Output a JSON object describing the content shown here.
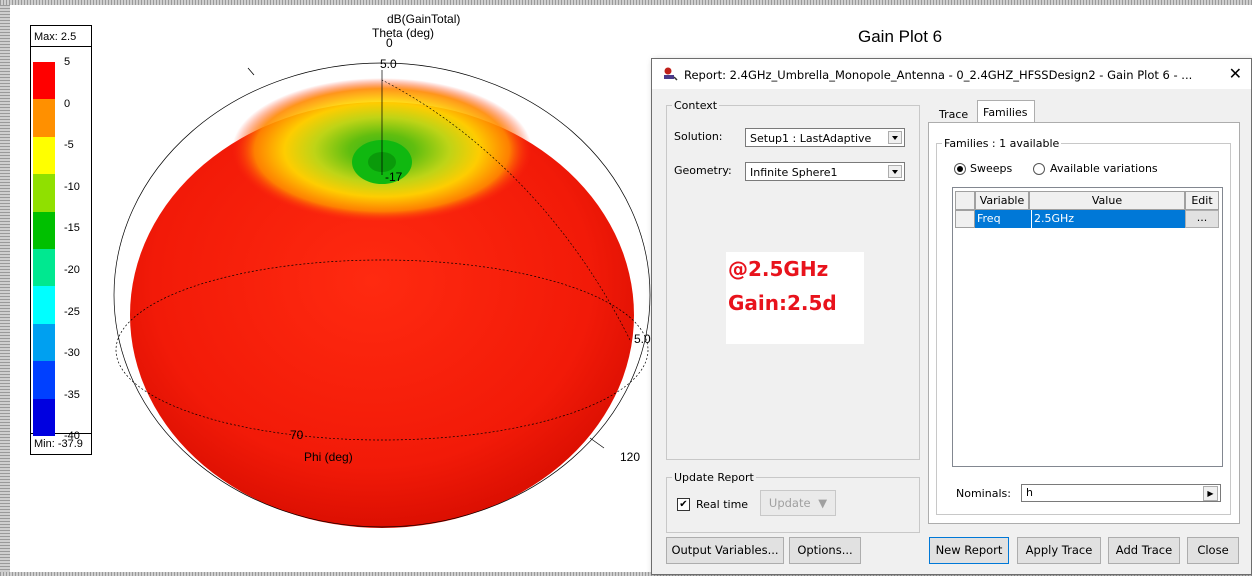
{
  "plot": {
    "title": "Gain Plot 6",
    "quantity_label": "dB(GainTotal)",
    "theta_label": "Theta (deg)",
    "theta_zero": "0",
    "phi_label": "Phi (deg)",
    "ring_labels": [
      "5.0",
      "-17",
      "5.0",
      "70",
      "120"
    ]
  },
  "legend": {
    "max_label": "Max: 2.5",
    "min_label": "Min: -37.9",
    "ticks": [
      "5",
      "0",
      "-5",
      "-10",
      "-15",
      "-20",
      "-25",
      "-30",
      "-35",
      "-40"
    ],
    "colors": [
      "#ff0000",
      "#ff9000",
      "#ffff00",
      "#90e000",
      "#00c000",
      "#00e890",
      "#00ffff",
      "#00a0f0",
      "#0040ff",
      "#0000e0"
    ]
  },
  "annotation": {
    "freq": "@2.5GHz",
    "gain": "Gain:2.5d"
  },
  "dialog": {
    "title": "Report: 2.4GHz_Umbrella_Monopole_Antenna - 0_2.4GHZ_HFSSDesign2 - Gain Plot 6 - ...",
    "close_glyph": "✕",
    "context": {
      "group_label": "Context",
      "solution_label": "Solution:",
      "solution_value": "Setup1 : LastAdaptive",
      "geometry_label": "Geometry:",
      "geometry_value": "Infinite Sphere1"
    },
    "update": {
      "group_label": "Update Report",
      "realtime_label": "Real time",
      "realtime_checked": true,
      "update_button": "Update"
    },
    "tabs": [
      "Trace",
      "Families"
    ],
    "families": {
      "group_label": "Families : 1 available",
      "radio_sweeps": "Sweeps",
      "radio_variations": "Available variations",
      "columns": [
        "Variable",
        "Value",
        "Edit"
      ],
      "rows": [
        {
          "variable": "Freq",
          "value": "2.5GHz",
          "edit": "..."
        }
      ],
      "nominals_label": "Nominals:",
      "nominals_value": "h"
    },
    "buttons": {
      "output_variables": "Output Variables...",
      "options": "Options...",
      "new_report": "New Report",
      "apply_trace": "Apply Trace",
      "add_trace": "Add Trace",
      "close": "Close"
    }
  }
}
